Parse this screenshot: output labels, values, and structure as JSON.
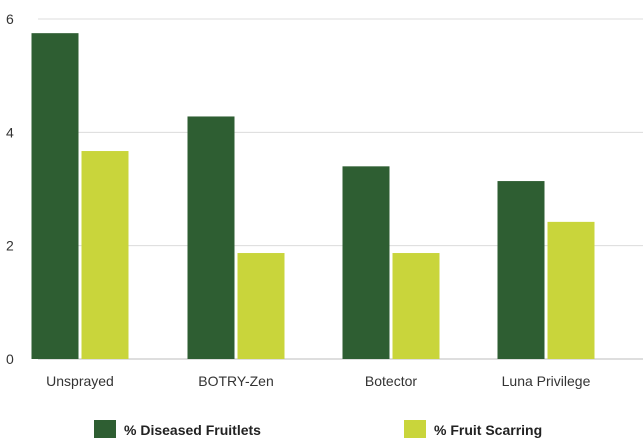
{
  "chart_data": {
    "type": "bar",
    "categories": [
      "Unsprayed",
      "BOTRY-Zen",
      "Botector",
      "Luna Privilege"
    ],
    "series": [
      {
        "name": "% Diseased Fruitlets",
        "color": "#2e5e32",
        "values": [
          5.75,
          4.28,
          3.4,
          3.14
        ]
      },
      {
        "name": "% Fruit Scarring",
        "color": "#c9d53b",
        "values": [
          3.67,
          1.87,
          1.87,
          2.42
        ]
      }
    ],
    "yticks": [
      "0",
      "2",
      "4",
      "6"
    ],
    "ylim": [
      0,
      6
    ],
    "grid": true,
    "legend_position": "bottom"
  }
}
